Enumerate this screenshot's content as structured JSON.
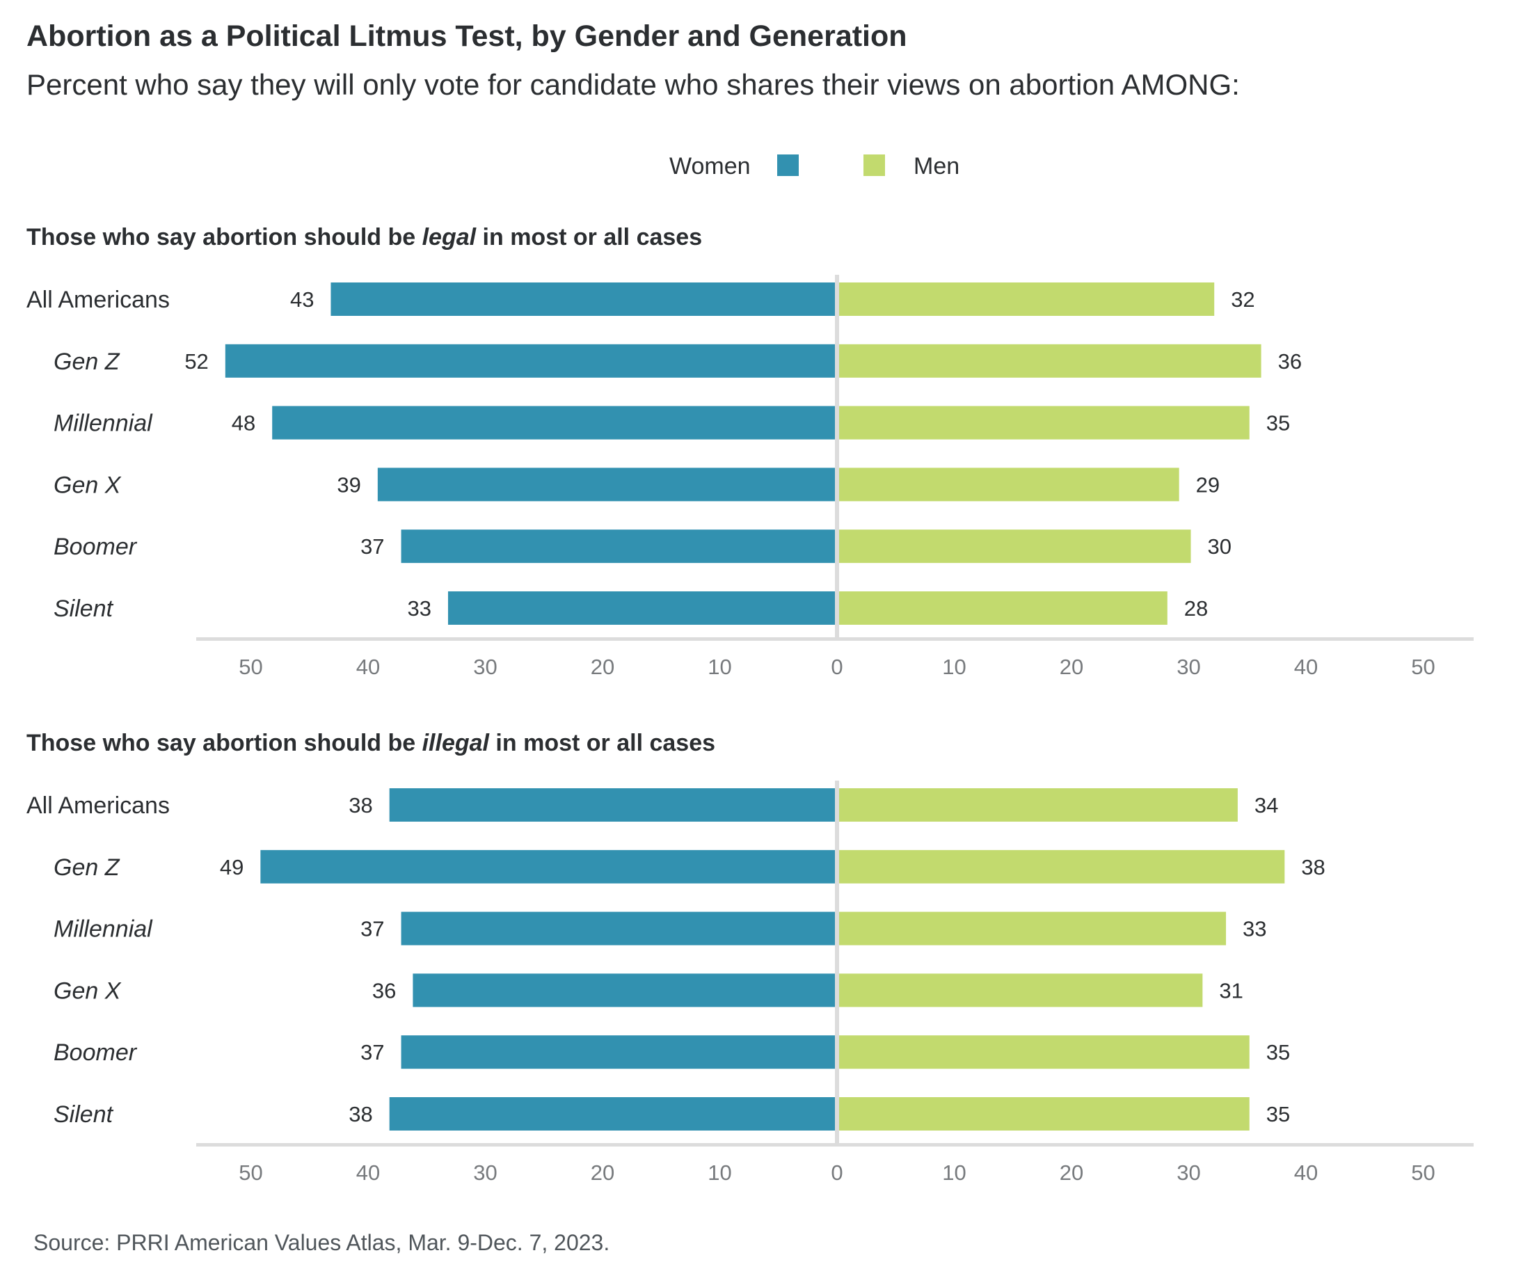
{
  "title": "Abortion as a Political Litmus Test, by Gender and Generation",
  "subtitle": "Percent who say they will only vote for candidate who shares their views on abortion AMONG:",
  "legend": [
    {
      "label": "Women",
      "color": "#3291b0"
    },
    {
      "label": "Men",
      "color": "#c2da6e"
    }
  ],
  "source": "Source: PRRI American Values Atlas, Mar. 9-Dec. 7, 2023.",
  "chart_data": [
    {
      "type": "bar",
      "orientation": "horizontal-diverging",
      "heading": {
        "prefix": "Those who say abortion should be ",
        "emphasis": "legal",
        "suffix": " in most or all cases"
      },
      "categories": [
        "All Americans",
        "Gen Z",
        "Millennial",
        "Gen X",
        "Boomer",
        "Silent"
      ],
      "category_italic": [
        false,
        true,
        true,
        true,
        true,
        true
      ],
      "series": [
        {
          "name": "Women",
          "side": "left",
          "color": "#3291b0",
          "values": [
            43,
            52,
            48,
            39,
            37,
            33
          ]
        },
        {
          "name": "Men",
          "side": "right",
          "color": "#c2da6e",
          "values": [
            32,
            36,
            35,
            29,
            30,
            28
          ]
        }
      ],
      "xlim": [
        -50,
        50
      ],
      "xticks": [
        "50",
        "40",
        "30",
        "20",
        "10",
        "0",
        "10",
        "20",
        "30",
        "40",
        "50"
      ],
      "xlabel": "",
      "ylabel": "",
      "grid": false,
      "legend_position": "top-center"
    },
    {
      "type": "bar",
      "orientation": "horizontal-diverging",
      "heading": {
        "prefix": "Those who say abortion should be ",
        "emphasis": "illegal",
        "suffix": " in most or all cases"
      },
      "categories": [
        "All Americans",
        "Gen Z",
        "Millennial",
        "Gen X",
        "Boomer",
        "Silent"
      ],
      "category_italic": [
        false,
        true,
        true,
        true,
        true,
        true
      ],
      "series": [
        {
          "name": "Women",
          "side": "left",
          "color": "#3291b0",
          "values": [
            38,
            49,
            37,
            36,
            37,
            38
          ]
        },
        {
          "name": "Men",
          "side": "right",
          "color": "#c2da6e",
          "values": [
            34,
            38,
            33,
            31,
            35,
            35
          ]
        }
      ],
      "xlim": [
        -50,
        50
      ],
      "xticks": [
        "50",
        "40",
        "30",
        "20",
        "10",
        "0",
        "10",
        "20",
        "30",
        "40",
        "50"
      ],
      "xlabel": "",
      "ylabel": "",
      "grid": false,
      "legend_position": "top-center"
    }
  ]
}
